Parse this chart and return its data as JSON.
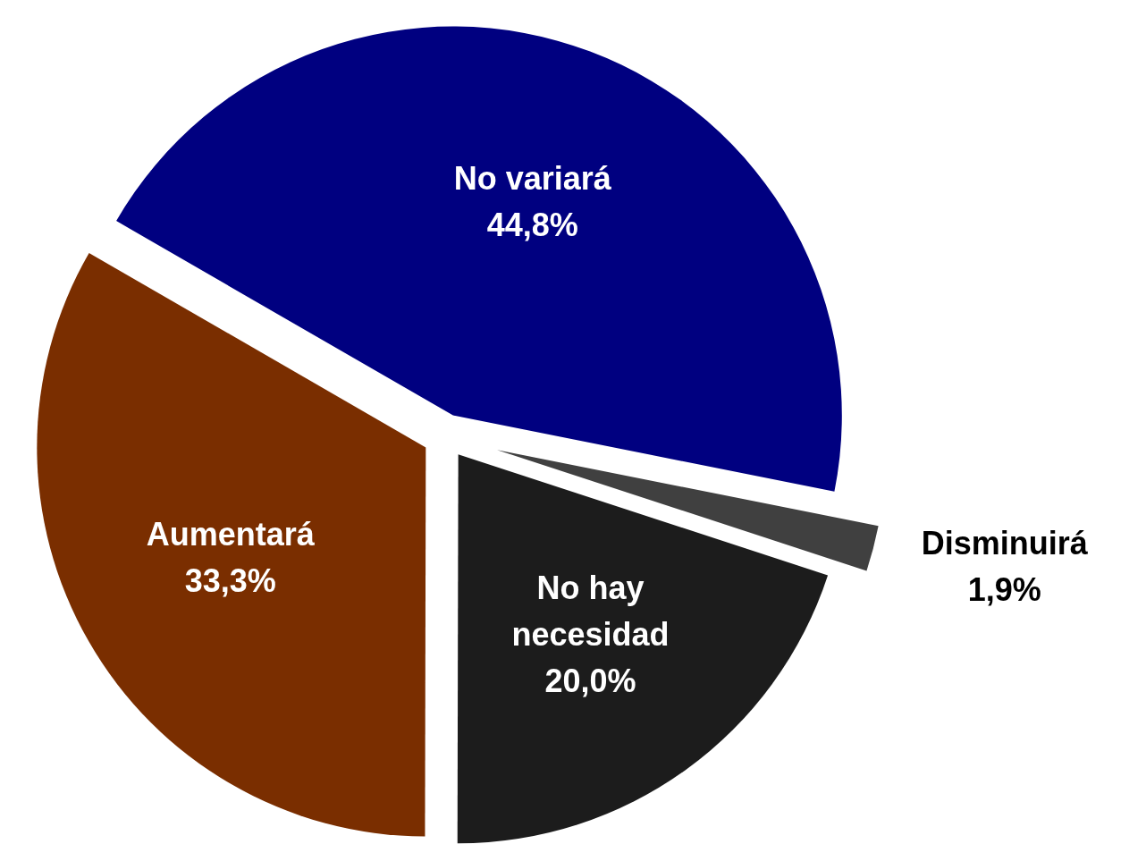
{
  "chart_data": {
    "type": "pie",
    "categories": [
      "No variará",
      "Disminuirá",
      "No hay necesidad",
      "Aumentará"
    ],
    "values": [
      44.8,
      1.9,
      20.0,
      33.3
    ],
    "colors": [
      "#000080",
      "#404040",
      "#1c1c1c",
      "#7a2e00"
    ],
    "value_labels": [
      "44,8%",
      "1,9%",
      "20,0%",
      "33,3%"
    ]
  }
}
